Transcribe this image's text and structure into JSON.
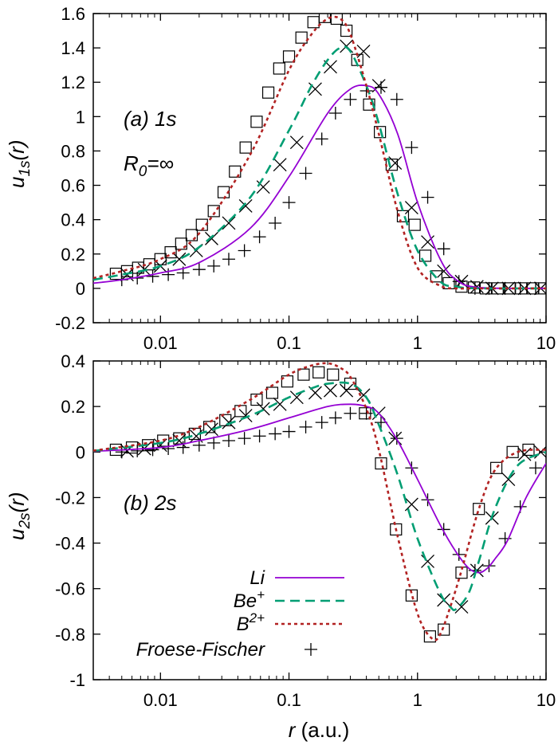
{
  "chart_data": [
    {
      "type": "line",
      "panel": "top",
      "ylabel_main": "u",
      "ylabel_sub": "1s",
      "ylabel_suffix": "(r)",
      "xscale": "log",
      "xlim": [
        0.003,
        10
      ],
      "ylim": [
        -0.2,
        1.6
      ],
      "xticks": [
        {
          "v": 0.01,
          "label": "0.01"
        },
        {
          "v": 0.1,
          "label": "0.1"
        },
        {
          "v": 1,
          "label": "1"
        },
        {
          "v": 10,
          "label": "10"
        }
      ],
      "yticks": [
        {
          "v": 1.6,
          "label": "1.6"
        },
        {
          "v": 1.4,
          "label": "1.4"
        },
        {
          "v": 1.2,
          "label": "1.2"
        },
        {
          "v": 1.0,
          "label": "1"
        },
        {
          "v": 0.8,
          "label": "0.8"
        },
        {
          "v": 0.6,
          "label": "0.6"
        },
        {
          "v": 0.4,
          "label": "0.4"
        },
        {
          "v": 0.2,
          "label": "0.2"
        },
        {
          "v": 0.0,
          "label": "0"
        },
        {
          "v": -0.2,
          "label": "-0.2"
        }
      ],
      "annotations": [
        {
          "text": "(a) 1s",
          "pos": "upper-left"
        },
        {
          "text": "R0=∞",
          "main": "R",
          "sub": "0",
          "rest": "=∞",
          "pos": "upper-left-below"
        }
      ],
      "series": [
        {
          "name": "Li",
          "style": "solid",
          "color": "#9400d3",
          "x": [
            0.003,
            0.005,
            0.01,
            0.02,
            0.05,
            0.1,
            0.2,
            0.3,
            0.4,
            0.5,
            0.7,
            1.0,
            1.5,
            2.0,
            3.0,
            10
          ],
          "y": [
            0.03,
            0.05,
            0.09,
            0.15,
            0.35,
            0.65,
            1.02,
            1.16,
            1.18,
            1.13,
            0.9,
            0.5,
            0.17,
            0.05,
            0.005,
            0.0
          ]
        },
        {
          "name": "Be+",
          "style": "dashed",
          "color": "#009e73",
          "x": [
            0.003,
            0.005,
            0.01,
            0.02,
            0.05,
            0.1,
            0.15,
            0.2,
            0.25,
            0.3,
            0.4,
            0.5,
            0.7,
            1.0,
            1.5,
            2.0,
            3.0,
            10
          ],
          "y": [
            0.05,
            0.08,
            0.13,
            0.24,
            0.53,
            0.92,
            1.18,
            1.33,
            1.4,
            1.38,
            1.18,
            0.96,
            0.55,
            0.22,
            0.04,
            0.01,
            0.0,
            0.0
          ]
        },
        {
          "name": "B2+",
          "style": "dotted",
          "color": "#b22222",
          "x": [
            0.003,
            0.005,
            0.01,
            0.02,
            0.05,
            0.1,
            0.15,
            0.2,
            0.25,
            0.3,
            0.4,
            0.5,
            0.7,
            1.0,
            1.5,
            2.0,
            3.0,
            10
          ],
          "y": [
            0.06,
            0.1,
            0.17,
            0.32,
            0.78,
            1.27,
            1.48,
            1.57,
            1.57,
            1.48,
            1.18,
            0.9,
            0.45,
            0.12,
            0.015,
            0.0,
            0.0,
            0.0
          ]
        }
      ],
      "markers_squares": {
        "x": [
          0.0045,
          0.0055,
          0.0067,
          0.0082,
          0.01,
          0.012,
          0.0145,
          0.0175,
          0.021,
          0.026,
          0.031,
          0.038,
          0.046,
          0.056,
          0.069,
          0.084,
          0.1,
          0.125,
          0.155,
          0.19,
          0.235,
          0.28,
          0.34,
          0.42,
          0.51,
          0.63,
          0.77,
          0.95,
          1.15,
          1.4,
          1.75,
          2.2,
          2.75,
          3.4,
          4.2,
          5.2,
          6.4,
          7.9,
          9.7
        ],
        "y": [
          0.085,
          0.1,
          0.12,
          0.14,
          0.17,
          0.21,
          0.26,
          0.31,
          0.37,
          0.45,
          0.56,
          0.68,
          0.82,
          0.97,
          1.14,
          1.28,
          1.35,
          1.46,
          1.55,
          1.58,
          1.57,
          1.5,
          1.33,
          1.07,
          0.91,
          0.72,
          0.42,
          0.37,
          0.19,
          0.07,
          0.03,
          0.01,
          0.005,
          0.0,
          0.0,
          0.0,
          0.0,
          0.0,
          0.0
        ]
      },
      "markers_x": {
        "x": [
          0.0055,
          0.0075,
          0.01,
          0.014,
          0.019,
          0.025,
          0.034,
          0.046,
          0.063,
          0.085,
          0.115,
          0.16,
          0.21,
          0.28,
          0.38,
          0.5,
          0.67,
          0.9,
          1.2,
          1.6,
          2.2,
          2.9,
          3.8,
          5.1,
          6.8,
          9.1
        ],
        "y": [
          0.08,
          0.11,
          0.13,
          0.17,
          0.22,
          0.29,
          0.38,
          0.48,
          0.59,
          0.72,
          0.85,
          1.16,
          1.29,
          1.41,
          1.38,
          1.18,
          0.73,
          0.47,
          0.27,
          0.1,
          0.04,
          0.01,
          0.0,
          0.0,
          0.0,
          0.0
        ]
      },
      "markers_plus": {
        "x": [
          0.005,
          0.0066,
          0.0087,
          0.0115,
          0.015,
          0.02,
          0.026,
          0.034,
          0.045,
          0.059,
          0.078,
          0.1,
          0.135,
          0.18,
          0.23,
          0.3,
          0.4,
          0.52,
          0.69,
          0.9,
          1.2,
          1.6,
          2.1,
          2.8,
          3.6,
          4.8,
          6.3,
          8.3
        ],
        "y": [
          0.05,
          0.06,
          0.07,
          0.08,
          0.09,
          0.11,
          0.13,
          0.17,
          0.22,
          0.3,
          0.38,
          0.5,
          0.67,
          0.87,
          1.02,
          1.1,
          1.15,
          1.17,
          1.1,
          0.82,
          0.53,
          0.23,
          0.04,
          0.0,
          0.0,
          0.0,
          0.0,
          0.0
        ]
      }
    },
    {
      "type": "line",
      "panel": "bottom",
      "ylabel_main": "u",
      "ylabel_sub": "2s",
      "ylabel_suffix": "(r)",
      "xlabel_main": "r",
      "xlabel_rest": " (a.u.)",
      "xscale": "log",
      "xlim": [
        0.003,
        10
      ],
      "ylim": [
        -1.0,
        0.4
      ],
      "xticks": [
        {
          "v": 0.01,
          "label": "0.01"
        },
        {
          "v": 0.1,
          "label": "0.1"
        },
        {
          "v": 1,
          "label": "1"
        },
        {
          "v": 10,
          "label": "10"
        }
      ],
      "yticks": [
        {
          "v": 0.4,
          "label": "0.4"
        },
        {
          "v": 0.2,
          "label": "0.2"
        },
        {
          "v": 0.0,
          "label": "0"
        },
        {
          "v": -0.2,
          "label": "-0.2"
        },
        {
          "v": -0.4,
          "label": "-0.4"
        },
        {
          "v": -0.6,
          "label": "-0.6"
        },
        {
          "v": -0.8,
          "label": "-0.8"
        },
        {
          "v": -1.0,
          "label": "-1"
        }
      ],
      "annotations": [
        {
          "text": "(b) 2s",
          "pos": "middle-left"
        }
      ],
      "legend": {
        "placement": "bottom-left",
        "entries": [
          {
            "label": "Li",
            "main": "Li",
            "sup": "",
            "style": "solid",
            "color": "#9400d3"
          },
          {
            "label": "Be+",
            "main": "Be",
            "sup": "+",
            "style": "dashed",
            "color": "#009e73"
          },
          {
            "label": "B2+",
            "main": "B",
            "sup": "2+",
            "style": "dotted",
            "color": "#b22222"
          },
          {
            "label": "Froese-Fischer",
            "main": "Froese-Fischer",
            "sup": "",
            "style": "marker-plus",
            "color": "#000000"
          }
        ]
      },
      "series": [
        {
          "name": "Li",
          "style": "solid",
          "color": "#9400d3",
          "x": [
            0.003,
            0.01,
            0.02,
            0.05,
            0.1,
            0.2,
            0.3,
            0.4,
            0.5,
            0.7,
            1.0,
            1.5,
            2.0,
            2.5,
            3.0,
            3.5,
            4.0,
            5.0,
            7.0,
            10
          ],
          "y": [
            0.003,
            0.02,
            0.05,
            0.1,
            0.15,
            0.2,
            0.21,
            0.2,
            0.17,
            0.05,
            -0.12,
            -0.32,
            -0.44,
            -0.51,
            -0.53,
            -0.51,
            -0.47,
            -0.39,
            -0.2,
            -0.05
          ]
        },
        {
          "name": "Be+",
          "style": "dashed",
          "color": "#009e73",
          "x": [
            0.003,
            0.01,
            0.02,
            0.05,
            0.1,
            0.15,
            0.2,
            0.3,
            0.4,
            0.5,
            0.7,
            1.0,
            1.5,
            1.8,
            2.0,
            2.5,
            3.0,
            4.0,
            6.0,
            10
          ],
          "y": [
            0.005,
            0.04,
            0.08,
            0.16,
            0.24,
            0.28,
            0.3,
            0.3,
            0.24,
            0.12,
            -0.1,
            -0.38,
            -0.62,
            -0.68,
            -0.69,
            -0.62,
            -0.48,
            -0.25,
            -0.06,
            0.0
          ]
        },
        {
          "name": "B2+",
          "style": "dotted",
          "color": "#b22222",
          "x": [
            0.003,
            0.01,
            0.02,
            0.05,
            0.1,
            0.15,
            0.2,
            0.25,
            0.3,
            0.4,
            0.5,
            0.7,
            1.0,
            1.3,
            1.5,
            1.8,
            2.2,
            3.0,
            4.0,
            6.0,
            10
          ],
          "y": [
            0.006,
            0.05,
            0.11,
            0.23,
            0.34,
            0.38,
            0.39,
            0.37,
            0.33,
            0.19,
            0.01,
            -0.37,
            -0.71,
            -0.82,
            -0.8,
            -0.68,
            -0.52,
            -0.25,
            -0.08,
            0.0,
            0.01
          ]
        }
      ],
      "markers_squares": {
        "x": [
          0.0045,
          0.006,
          0.008,
          0.0105,
          0.014,
          0.0185,
          0.024,
          0.032,
          0.042,
          0.056,
          0.074,
          0.097,
          0.13,
          0.17,
          0.22,
          0.3,
          0.39,
          0.52,
          0.68,
          0.9,
          1.25,
          1.6,
          2.2,
          3.0,
          4.1,
          5.5,
          7.3
        ],
        "y": [
          0.01,
          0.02,
          0.03,
          0.05,
          0.06,
          0.08,
          0.11,
          0.14,
          0.18,
          0.23,
          0.26,
          0.31,
          0.34,
          0.35,
          0.34,
          0.3,
          0.17,
          -0.05,
          -0.34,
          -0.63,
          -0.81,
          -0.78,
          -0.53,
          -0.25,
          -0.07,
          0.0,
          0.01
        ]
      },
      "markers_x": {
        "x": [
          0.0055,
          0.0075,
          0.01,
          0.014,
          0.019,
          0.025,
          0.034,
          0.046,
          0.063,
          0.085,
          0.115,
          0.16,
          0.21,
          0.28,
          0.38,
          0.5,
          0.67,
          0.9,
          1.2,
          1.6,
          2.2,
          2.9,
          3.8,
          5.1,
          6.8,
          9.1
        ],
        "y": [
          0.005,
          0.015,
          0.03,
          0.05,
          0.07,
          0.1,
          0.13,
          0.16,
          0.19,
          0.21,
          0.24,
          0.26,
          0.27,
          0.27,
          0.25,
          0.17,
          0.06,
          -0.23,
          -0.48,
          -0.65,
          -0.68,
          -0.52,
          -0.29,
          -0.12,
          -0.01,
          0.0
        ]
      },
      "markers_plus": {
        "x": [
          0.005,
          0.0066,
          0.0087,
          0.0115,
          0.015,
          0.02,
          0.026,
          0.034,
          0.045,
          0.059,
          0.078,
          0.1,
          0.135,
          0.18,
          0.23,
          0.3,
          0.4,
          0.52,
          0.69,
          0.9,
          1.2,
          1.6,
          2.1,
          2.8,
          3.6,
          4.8,
          6.3,
          8.3
        ],
        "y": [
          0.0,
          0.005,
          0.01,
          0.015,
          0.02,
          0.03,
          0.04,
          0.05,
          0.06,
          0.07,
          0.08,
          0.09,
          0.11,
          0.13,
          0.15,
          0.17,
          0.17,
          0.13,
          0.06,
          -0.07,
          -0.21,
          -0.34,
          -0.45,
          -0.52,
          -0.5,
          -0.38,
          -0.24,
          -0.07
        ]
      }
    }
  ]
}
